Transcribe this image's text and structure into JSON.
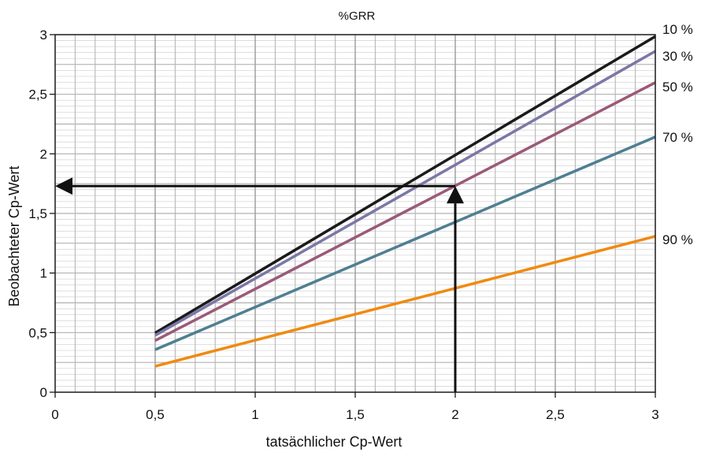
{
  "chart_data": {
    "type": "line",
    "title": "%GRR",
    "xlabel": "tatsächlicher Cp-Wert",
    "ylabel": "Beobachteter Cp-Wert",
    "xlim": [
      0,
      3
    ],
    "ylim": [
      0,
      3
    ],
    "x_ticks": [
      {
        "value": 0,
        "label": "0"
      },
      {
        "value": 0.5,
        "label": "0,5"
      },
      {
        "value": 1,
        "label": "1"
      },
      {
        "value": 1.5,
        "label": "1,5"
      },
      {
        "value": 2,
        "label": "2"
      },
      {
        "value": 2.5,
        "label": "2,5"
      },
      {
        "value": 3,
        "label": "3"
      }
    ],
    "y_ticks": [
      {
        "value": 0,
        "label": "0"
      },
      {
        "value": 0.5,
        "label": "0,5"
      },
      {
        "value": 1,
        "label": "1"
      },
      {
        "value": 1.5,
        "label": "1,5"
      },
      {
        "value": 2,
        "label": "2"
      },
      {
        "value": 2.5,
        "label": "2,5"
      },
      {
        "value": 3,
        "label": "3"
      }
    ],
    "grid": true,
    "series": [
      {
        "name": "10 %",
        "color": "#1a1a1a",
        "x": [
          0.5,
          3
        ],
        "y": [
          0.497,
          2.985
        ]
      },
      {
        "name": "30 %",
        "color": "#7b77a6",
        "x": [
          0.5,
          3
        ],
        "y": [
          0.477,
          2.861
        ]
      },
      {
        "name": "50 %",
        "color": "#9a5a77",
        "x": [
          0.5,
          3
        ],
        "y": [
          0.433,
          2.598
        ]
      },
      {
        "name": "70 %",
        "color": "#4f7f92",
        "x": [
          0.5,
          3
        ],
        "y": [
          0.357,
          2.142
        ]
      },
      {
        "name": "90 %",
        "color": "#f08a10",
        "x": [
          0.5,
          3
        ],
        "y": [
          0.218,
          1.308
        ]
      }
    ],
    "annotations": [
      {
        "type": "arrow",
        "from": [
          2,
          0
        ],
        "to": [
          2,
          1.73
        ]
      },
      {
        "type": "arrow",
        "from": [
          2,
          1.73
        ],
        "to": [
          0,
          1.73
        ]
      }
    ]
  }
}
